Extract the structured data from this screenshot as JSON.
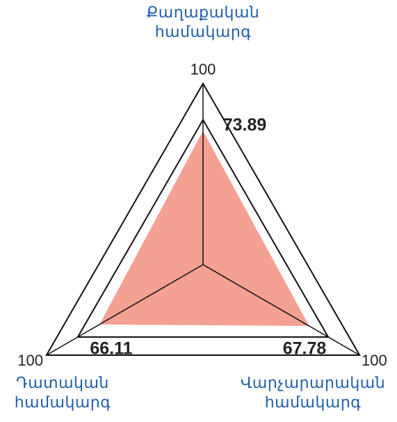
{
  "chart_data": {
    "type": "radar",
    "categories": [
      "Քաղաքական համակարգ",
      "Վարչարարական համակարգ",
      "Դատական համակարգ"
    ],
    "values": [
      73.89,
      67.78,
      66.11
    ],
    "color": "#f4a092",
    "rlim": [
      0,
      100
    ],
    "rticks": [
      80,
      100
    ],
    "grid": true
  }
}
